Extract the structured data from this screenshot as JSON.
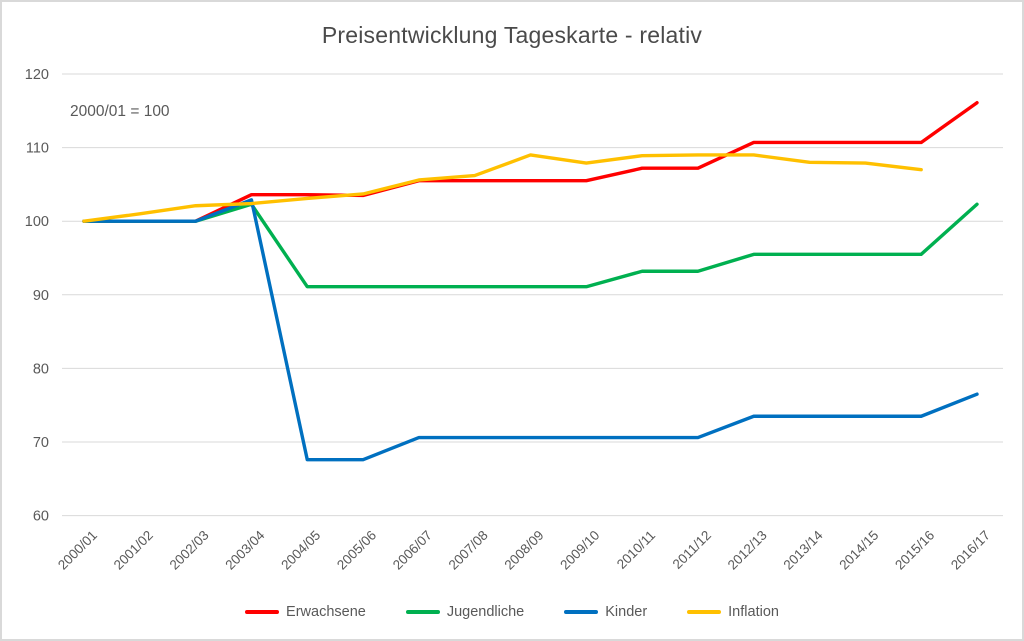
{
  "frame": {
    "background": "#FFFFFF",
    "border_color": "#D9D9D9"
  },
  "chart_data": {
    "type": "line",
    "title": "Preisentwicklung Tageskarte - relativ",
    "annotation": "2000/01 = 100",
    "categories": [
      "2000/01",
      "2001/02",
      "2002/03",
      "2003/04",
      "2004/05",
      "2005/06",
      "2006/07",
      "2007/08",
      "2008/09",
      "2009/10",
      "2010/11",
      "2011/12",
      "2012/13",
      "2013/14",
      "2014/15",
      "2015/16",
      "2016/17"
    ],
    "series": [
      {
        "name": "Erwachsene",
        "color": "#FF0000",
        "values": [
          100,
          100,
          100,
          103.6,
          103.6,
          103.5,
          105.5,
          105.5,
          105.5,
          105.5,
          107.2,
          107.2,
          110.7,
          110.7,
          110.7,
          110.7,
          116.1
        ]
      },
      {
        "name": "Jugendliche",
        "color": "#00B050",
        "values": [
          100,
          100,
          100,
          102.3,
          91.1,
          91.1,
          91.1,
          91.1,
          91.1,
          91.1,
          93.2,
          93.2,
          95.5,
          95.5,
          95.5,
          95.5,
          102.3
        ]
      },
      {
        "name": "Kinder",
        "color": "#0070C0",
        "values": [
          100,
          100,
          100,
          102.9,
          67.6,
          67.6,
          70.6,
          70.6,
          70.6,
          70.6,
          70.6,
          70.6,
          73.5,
          73.5,
          73.5,
          73.5,
          76.5
        ]
      },
      {
        "name": "Inflation",
        "color": "#FFC000",
        "values": [
          100,
          101,
          102.1,
          102.4,
          103.1,
          103.7,
          105.6,
          106.2,
          109,
          107.9,
          108.9,
          109,
          109,
          108,
          107.9,
          107
        ]
      }
    ],
    "ylim": [
      60,
      120
    ],
    "yticks": [
      120,
      110,
      100,
      90,
      80,
      70,
      60
    ],
    "grid": "horizontal",
    "gridline_color": "#D9D9D9",
    "axis_label_color": "#595959",
    "legend_position": "bottom"
  }
}
